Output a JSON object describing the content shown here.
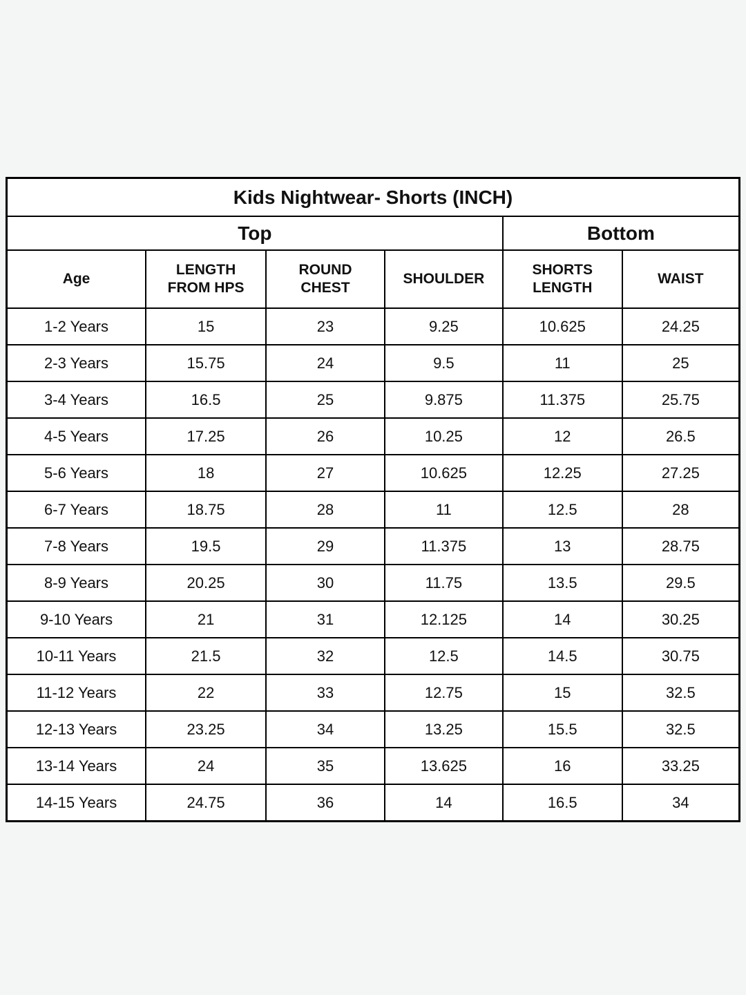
{
  "page": {
    "background_color": "#f4f6f5",
    "table_border_color": "#000000",
    "cell_background_color": "#ffffff",
    "text_color": "#111111"
  },
  "table": {
    "title": "Kids Nightwear- Shorts (INCH)",
    "group_headers": [
      {
        "label": "Top",
        "colspan": 4
      },
      {
        "label": "Bottom",
        "colspan": 2
      }
    ],
    "columns": [
      "Age",
      "LENGTH\nFROM HPS",
      "ROUND\nCHEST",
      "SHOULDER",
      "SHORTS\nLENGTH",
      "WAIST"
    ],
    "rows": [
      [
        "1-2 Years",
        "15",
        "23",
        "9.25",
        "10.625",
        "24.25"
      ],
      [
        "2-3 Years",
        "15.75",
        "24",
        "9.5",
        "11",
        "25"
      ],
      [
        "3-4 Years",
        "16.5",
        "25",
        "9.875",
        "11.375",
        "25.75"
      ],
      [
        "4-5 Years",
        "17.25",
        "26",
        "10.25",
        "12",
        "26.5"
      ],
      [
        "5-6 Years",
        "18",
        "27",
        "10.625",
        "12.25",
        "27.25"
      ],
      [
        "6-7 Years",
        "18.75",
        "28",
        "11",
        "12.5",
        "28"
      ],
      [
        "7-8 Years",
        "19.5",
        "29",
        "11.375",
        "13",
        "28.75"
      ],
      [
        "8-9 Years",
        "20.25",
        "30",
        "11.75",
        "13.5",
        "29.5"
      ],
      [
        "9-10 Years",
        "21",
        "31",
        "12.125",
        "14",
        "30.25"
      ],
      [
        "10-11 Years",
        "21.5",
        "32",
        "12.5",
        "14.5",
        "30.75"
      ],
      [
        "11-12 Years",
        "22",
        "33",
        "12.75",
        "15",
        "32.5"
      ],
      [
        "12-13 Years",
        "23.25",
        "34",
        "13.25",
        "15.5",
        "32.5"
      ],
      [
        "13-14 Years",
        "24",
        "35",
        "13.625",
        "16",
        "33.25"
      ],
      [
        "14-15 Years",
        "24.75",
        "36",
        "14",
        "16.5",
        "34"
      ]
    ]
  }
}
